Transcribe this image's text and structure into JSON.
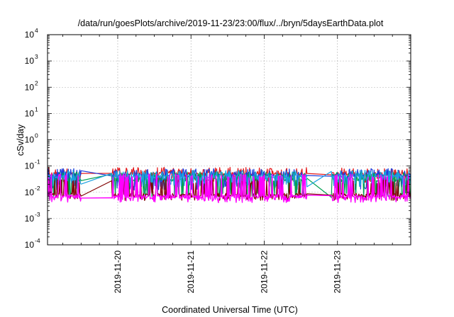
{
  "chart_data": {
    "type": "line",
    "title": "/data/run/goesPlots/archive/2019-11-23/23:00/flux/../bryn/5daysEarthData.plot",
    "xlabel": "Coordinated Universal Time (UTC)",
    "ylabel": "cSv/day",
    "yscale": "log",
    "ylim": [
      0.0001,
      10000
    ],
    "y_ticks": [
      {
        "base": "10",
        "exp": "-4",
        "value": 0.0001
      },
      {
        "base": "10",
        "exp": "-3",
        "value": 0.001
      },
      {
        "base": "10",
        "exp": "-2",
        "value": 0.01
      },
      {
        "base": "10",
        "exp": "-1",
        "value": 0.1
      },
      {
        "base": "10",
        "exp": "0",
        "value": 1
      },
      {
        "base": "10",
        "exp": "1",
        "value": 10
      },
      {
        "base": "10",
        "exp": "2",
        "value": 100
      },
      {
        "base": "10",
        "exp": "3",
        "value": 1000
      },
      {
        "base": "10",
        "exp": "4",
        "value": 10000
      }
    ],
    "xlim": [
      "2019-11-19T01:00",
      "2019-11-24T00:00"
    ],
    "x_ticks": [
      "2019-11-20",
      "2019-11-21",
      "2019-11-22",
      "2019-11-23"
    ],
    "grid": true,
    "legend": "none",
    "series": [
      {
        "color": "#e41a1c",
        "base": 0.05,
        "spike_high": 0.09,
        "dip_low": 0.03
      },
      {
        "color": "#1e3cdc",
        "base": 0.045,
        "spike_high": 0.08,
        "dip_low": 0.015
      },
      {
        "color": "#00a050",
        "base": 0.03,
        "spike_high": 0.06,
        "dip_low": 0.008
      },
      {
        "color": "#1aa0e0",
        "base": 0.04,
        "spike_high": 0.07,
        "dip_low": 0.02
      },
      {
        "color": "#800000",
        "base": 0.008,
        "spike_high": 0.03,
        "dip_low": 0.006
      },
      {
        "color": "#ff00ff",
        "base": 0.007,
        "spike_high": 0.05,
        "dip_low": 0.005
      }
    ],
    "gaps": [
      {
        "start": "2019-11-19T12:00",
        "end": "2019-11-19T22:00"
      },
      {
        "start": "2019-11-22T14:00",
        "end": "2019-11-22T22:00"
      }
    ]
  }
}
